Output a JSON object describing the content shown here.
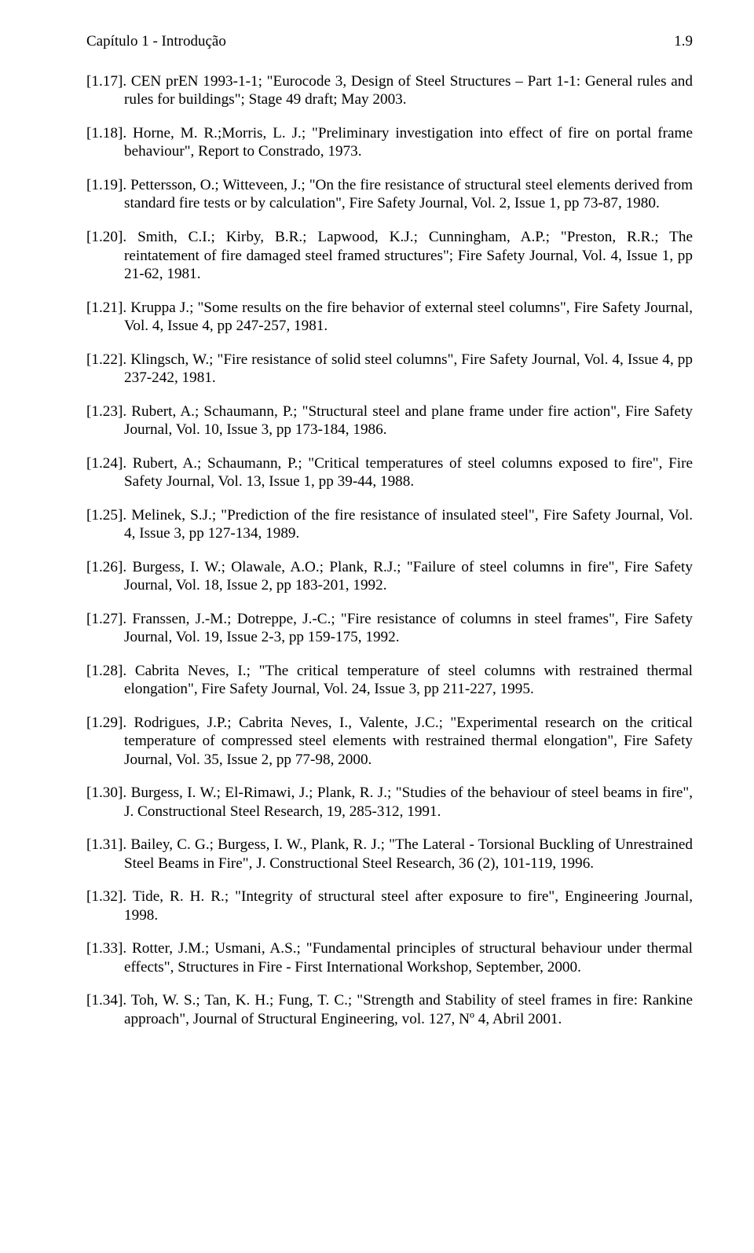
{
  "header": {
    "label": "Capítulo 1 - Introdução",
    "page": "1.9"
  },
  "refs": [
    {
      "num": "[1.17].",
      "text": "CEN prEN 1993-1-1; \"Eurocode 3, Design of Steel Structures – Part 1-1: General rules and rules for buildings\"; Stage 49 draft; May 2003."
    },
    {
      "num": "[1.18].",
      "text": "Horne, M. R.;Morris, L. J.; \"Preliminary investigation into effect of fire on portal frame behaviour\", Report to Constrado, 1973."
    },
    {
      "num": "[1.19].",
      "text": "Pettersson, O.; Witteveen, J.; \"On the fire resistance of structural steel elements derived from standard fire tests or by calculation\", Fire Safety Journal, Vol. 2, Issue 1, pp 73-87, 1980."
    },
    {
      "num": "[1.20].",
      "text": "Smith, C.I.; Kirby, B.R.; Lapwood, K.J.; Cunningham, A.P.; \"Preston, R.R.; The reintatement of fire damaged steel framed structures\"; Fire Safety Journal, Vol. 4, Issue 1, pp 21-62, 1981."
    },
    {
      "num": "[1.21].",
      "text": "Kruppa J.; \"Some results on the fire behavior of external steel columns\", Fire Safety Journal, Vol. 4, Issue 4, pp 247-257, 1981."
    },
    {
      "num": "[1.22].",
      "text": "Klingsch, W.; \"Fire resistance of solid steel columns\", Fire Safety Journal, Vol. 4, Issue 4, pp 237-242, 1981."
    },
    {
      "num": "[1.23].",
      "text": "Rubert, A.; Schaumann, P.; \"Structural steel and plane frame under fire action\", Fire Safety Journal, Vol. 10, Issue 3, pp 173-184, 1986."
    },
    {
      "num": "[1.24].",
      "text": "Rubert, A.; Schaumann, P.; \"Critical temperatures of steel columns exposed to fire\", Fire Safety Journal, Vol. 13, Issue 1, pp 39-44, 1988."
    },
    {
      "num": "[1.25].",
      "text": "Melinek, S.J.; \"Prediction of the fire resistance of insulated steel\", Fire Safety Journal, Vol. 4, Issue 3, pp 127-134, 1989."
    },
    {
      "num": "[1.26].",
      "text": "Burgess, I. W.; Olawale, A.O.; Plank, R.J.; \"Failure of steel columns in fire\", Fire Safety Journal, Vol. 18, Issue 2, pp 183-201, 1992."
    },
    {
      "num": "[1.27].",
      "text": "Franssen, J.-M.; Dotreppe, J.-C.; \"Fire resistance of columns in steel frames\", Fire Safety Journal, Vol. 19, Issue 2-3, pp 159-175, 1992."
    },
    {
      "num": "[1.28].",
      "text": "Cabrita Neves, I.; \"The critical temperature of steel columns with restrained thermal elongation\", Fire Safety Journal, Vol. 24, Issue 3, pp 211-227, 1995."
    },
    {
      "num": "[1.29].",
      "text": "Rodrigues, J.P.; Cabrita Neves, I., Valente, J.C.; \"Experimental research on the critical temperature of compressed steel elements with restrained thermal elongation\", Fire Safety Journal, Vol. 35, Issue 2, pp 77-98, 2000."
    },
    {
      "num": "[1.30].",
      "text": "Burgess, I. W.; El-Rimawi, J.; Plank, R. J.; \"Studies of the behaviour of steel beams in fire\", J. Constructional Steel Research, 19, 285-312, 1991."
    },
    {
      "num": "[1.31].",
      "text": "Bailey, C. G.; Burgess, I. W., Plank, R. J.; \"The Lateral - Torsional Buckling of Unrestrained Steel Beams in Fire\", J. Constructional Steel Research, 36 (2), 101-119, 1996."
    },
    {
      "num": "[1.32].",
      "text": "Tide, R. H. R.; \"Integrity of structural steel after exposure to fire\", Engineering Journal, 1998."
    },
    {
      "num": "[1.33].",
      "text": "Rotter, J.M.; Usmani, A.S.; \"Fundamental principles of structural behaviour under thermal effects\", Structures in Fire - First International Workshop, September, 2000."
    },
    {
      "num": "[1.34].",
      "text": "Toh, W. S.; Tan, K. H.; Fung, T. C.; \"Strength and Stability of steel frames in fire: Rankine approach\", Journal of Structural Engineering, vol. 127, Nº 4, Abril 2001."
    }
  ]
}
